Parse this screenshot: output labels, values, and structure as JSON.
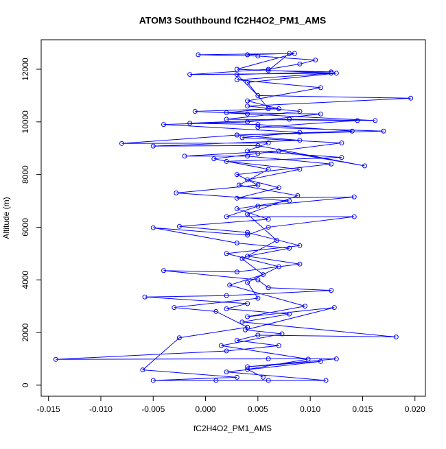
{
  "chart_data": {
    "type": "line",
    "title": "ATOM3 Southbound fC2H4O2_PM1_AMS",
    "x_label": "fC2H4O2_PM1_AMS",
    "y_label": "Altitude (m)",
    "color": "#0000ff",
    "x": [
      0.004,
      0.008,
      0.006,
      0.012,
      0.003,
      0.005,
      0.0196,
      0.004,
      0.009,
      0.002,
      0.0145,
      0.005,
      0.017,
      0.003,
      -0.008,
      0.006,
      0.004,
      0.013,
      0.002,
      0.009,
      0.004,
      0.007,
      0.003,
      0.0142,
      0.005,
      0.002,
      0.0142,
      0.006,
      0.004,
      -0.005,
      0.003,
      0.008,
      0.004,
      0.009,
      0.003,
      -0.004,
      0.005,
      0.006,
      0.012,
      0.002,
      -0.0058,
      0.004,
      0.002,
      0.008,
      0.0035,
      0.0182,
      0.005,
      0.003,
      0.007,
      0.002,
      -0.0143,
      0.006,
      0.0125,
      0.004,
      0.011,
      0.002,
      0.0115,
      0.006,
      0.001,
      -0.005,
      0.003,
      -0.006,
      -0.0025,
      0.004,
      0.001,
      -0.003,
      0.005,
      0.004,
      0.007,
      0.002,
      0.009,
      0.004,
      -0.0025,
      0.006,
      0.003,
      0.008,
      -0.0028,
      0.005,
      0.003,
      0.012,
      0.004,
      -0.002,
      0.007,
      0.0152,
      0.005,
      -0.005,
      0.009,
      0.003,
      0.014,
      0.005,
      -0.0015,
      0.008,
      0.0162,
      0.004,
      -0.001,
      0.007,
      0.004,
      0.011,
      0.003,
      0.012,
      -0.0015,
      0.006,
      0.009,
      0.0105,
      0.005,
      -0.0007,
      0.0085,
      0.003,
      0.0125,
      0.004,
      0.006,
      0.002,
      0.011,
      0.004,
      -0.004,
      0.009,
      0.0035,
      0.013,
      0.005,
      0.0008,
      0.006,
      0.0032,
      0.0088,
      0.004,
      0.0068,
      0.0035,
      0.0055,
      0.0023,
      0.0095,
      0.004,
      0.0123,
      0.0038,
      0.0073,
      0.0015,
      0.0098,
      0.004,
      0.0055
    ],
    "values": [
      12550,
      12600,
      11950,
      11900,
      11800,
      11000,
      10900,
      10600,
      10400,
      10100,
      10050,
      9800,
      9650,
      9500,
      9180,
      9200,
      8900,
      8650,
      8500,
      8200,
      7800,
      7500,
      7100,
      7150,
      6800,
      6400,
      6400,
      6000,
      5700,
      5980,
      5400,
      5200,
      4900,
      4600,
      4300,
      4350,
      4000,
      3700,
      3600,
      3400,
      3350,
      3100,
      2900,
      2700,
      2400,
      1830,
      1900,
      1700,
      1500,
      1300,
      980,
      1000,
      1000,
      700,
      900,
      500,
      180,
      180,
      180,
      180,
      300,
      580,
      1800,
      2200,
      2800,
      2950,
      3300,
      3900,
      4500,
      5000,
      5300,
      5800,
      6030,
      6300,
      6700,
      7000,
      7300,
      7600,
      8000,
      8400,
      8700,
      8700,
      8900,
      8330,
      9100,
      9080,
      9300,
      9500,
      9650,
      9900,
      9950,
      10100,
      10050,
      10300,
      10400,
      10500,
      10800,
      11300,
      11600,
      11850,
      11800,
      12000,
      12200,
      12350,
      12500,
      12550,
      12600,
      12000,
      11850,
      11500,
      10500,
      10350,
      10300,
      10000,
      9900,
      9600,
      9400,
      9200,
      8800,
      8600,
      8200,
      7600,
      7200,
      6500,
      5500,
      4800,
      4200,
      3800,
      3000,
      2600,
      2950,
      2100,
      1950,
      1500,
      990,
      600,
      300
    ],
    "xlim": [
      -0.0157,
      0.021
    ],
    "ylim": [
      -420,
      13120
    ],
    "xticks": [
      -0.015,
      {
        "value": -0.01,
        "label": "-0.010"
      },
      -0.005,
      {
        "value": 0,
        "label": "0.000"
      },
      0.005,
      {
        "value": 0.01,
        "label": "0.010"
      },
      0.015,
      {
        "value": 0.02,
        "label": "0.020"
      }
    ],
    "yticks": [
      0,
      2000,
      4000,
      6000,
      8000,
      10000,
      12000
    ]
  }
}
